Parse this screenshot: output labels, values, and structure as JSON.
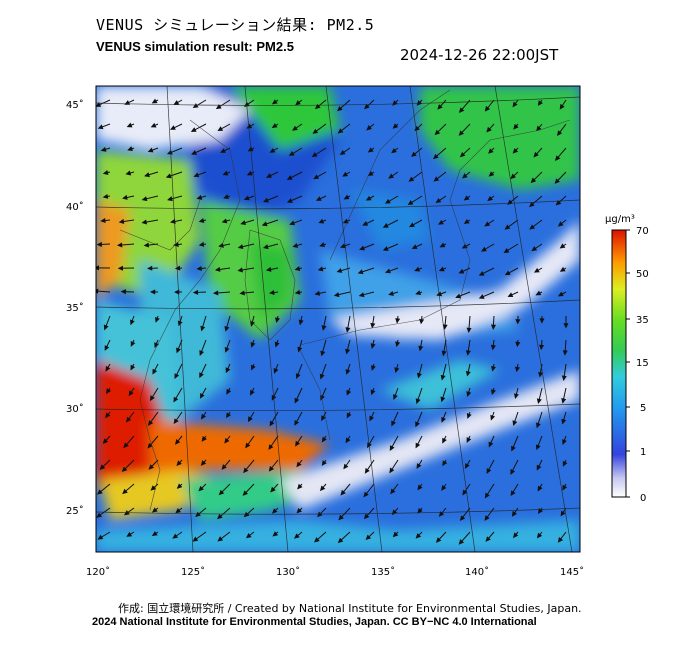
{
  "header": {
    "title_jp": "VENUS シミュレーション結果: PM2.5",
    "title_en": "VENUS simulation result: PM2.5",
    "timestamp": "2024-12-26 22:00JST"
  },
  "map": {
    "lat_labels": [
      "45˚",
      "40˚",
      "35˚",
      "30˚",
      "25˚"
    ],
    "lon_labels": [
      "120˚",
      "125˚",
      "130˚",
      "135˚",
      "140˚",
      "145˚"
    ],
    "colors": {
      "very_low": "#f2f2fa",
      "low": "#2255dd",
      "mid": "#3cb8e0",
      "green": "#33cc33",
      "high": "#ff8800",
      "very_high": "#dd1100",
      "arrow": "#111111"
    }
  },
  "colorbar": {
    "unit": "μg/m³",
    "tick_labels": [
      "70",
      "50",
      "35",
      "15",
      "5",
      "1",
      "0"
    ],
    "tick_values": [
      70,
      50,
      35,
      15,
      5,
      1,
      0
    ]
  },
  "footer": {
    "credit": "作成: 国立環境研究所 / Created by National Institute for Environmental Studies, Japan.",
    "copyright": "2024 National Institute for Environmental Studies, Japan. CC BY−NC 4.0 International"
  }
}
